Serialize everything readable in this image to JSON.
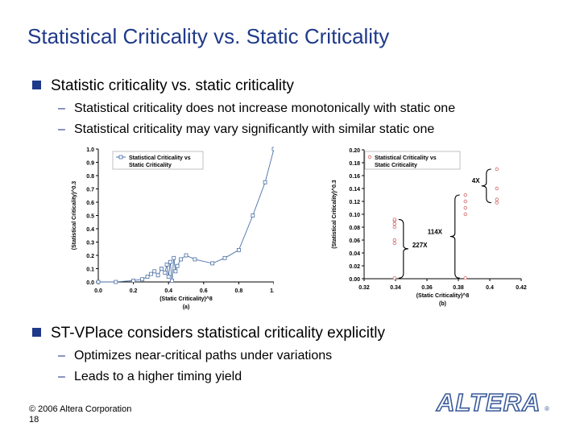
{
  "slide": {
    "title": "Statistical Criticality vs. Static Criticality",
    "bullet1": "Statistic criticality vs. static criticality",
    "sub1a": "Statistical criticality does not increase monotonically with static one",
    "sub1b": "Statistical criticality may vary significantly with similar static one",
    "bullet2": "ST-VPlace considers statistical criticality explicitly",
    "sub2a": "Optimizes near-critical paths under variations",
    "sub2b": "Leads to a higher timing yield",
    "dash": "–",
    "footer_copyright": "© 2006 Altera Corporation",
    "footer_page": "18",
    "logo_text": "ALTERA",
    "logo_mark": "®"
  },
  "colors": {
    "title": "#1f3a8a",
    "bullet": "#1f3a8a",
    "series_a": "#4a6fa5",
    "series_b": "#d06a6a",
    "logo": "#3a5a9a"
  },
  "chart_data": [
    {
      "type": "line",
      "caption": "(a)",
      "xlabel": "(Static Criticality)^8",
      "ylabel": "(Statistical Criticality)^0.3",
      "xlim": [
        0,
        1.0
      ],
      "ylim": [
        0,
        1.0
      ],
      "xticks": [
        "0.0",
        "0.2",
        "0.4",
        "0.6",
        "0.8",
        "1.0"
      ],
      "yticks": [
        "0.0",
        "0.1",
        "0.2",
        "0.3",
        "0.4",
        "0.5",
        "0.6",
        "0.7",
        "0.8",
        "0.9",
        "1.0"
      ],
      "legend": [
        "Statistical Criticality vs",
        "Static Criticality"
      ],
      "series": [
        {
          "name": "Statistical Criticality vs Static Criticality",
          "x": [
            0.0,
            0.1,
            0.2,
            0.25,
            0.28,
            0.3,
            0.32,
            0.34,
            0.36,
            0.38,
            0.39,
            0.4,
            0.41,
            0.42,
            0.43,
            0.44,
            0.45,
            0.47,
            0.5,
            0.55,
            0.65,
            0.72,
            0.8,
            0.88,
            0.95,
            1.0
          ],
          "y": [
            0.0,
            0.0,
            0.01,
            0.02,
            0.04,
            0.06,
            0.08,
            0.05,
            0.1,
            0.07,
            0.13,
            0.04,
            0.15,
            0.01,
            0.18,
            0.08,
            0.12,
            0.17,
            0.2,
            0.17,
            0.14,
            0.18,
            0.24,
            0.5,
            0.75,
            1.0
          ]
        }
      ]
    },
    {
      "type": "scatter",
      "caption": "(b)",
      "xlabel": "(Static Criticality)^8",
      "ylabel": "(Statistical Criticality)^0.3",
      "xlim": [
        0.32,
        0.42
      ],
      "ylim": [
        0,
        0.2
      ],
      "xticks": [
        "0.32",
        "0.34",
        "0.36",
        "0.38",
        "0.4",
        "0.42"
      ],
      "yticks": [
        "0.00",
        "0.02",
        "0.04",
        "0.06",
        "0.08",
        "0.10",
        "0.12",
        "0.14",
        "0.16",
        "0.18",
        "0.20"
      ],
      "legend": [
        "Statistical Criticality vs",
        "Static Criticality"
      ],
      "annotations": [
        "227X",
        "114X",
        "4X"
      ],
      "series": [
        {
          "name": "Statistical Criticality vs Static Criticality",
          "x": [
            0.3394,
            0.3394,
            0.3394,
            0.3394,
            0.3394,
            0.3394,
            0.3394,
            0.3845,
            0.3845,
            0.3845,
            0.3845,
            0.3845,
            0.4045,
            0.4045,
            0.4045,
            0.4045
          ],
          "y": [
            0.001,
            0.055,
            0.06,
            0.08,
            0.085,
            0.09,
            0.092,
            0.001,
            0.1,
            0.11,
            0.12,
            0.13,
            0.118,
            0.123,
            0.14,
            0.17
          ]
        }
      ]
    }
  ]
}
